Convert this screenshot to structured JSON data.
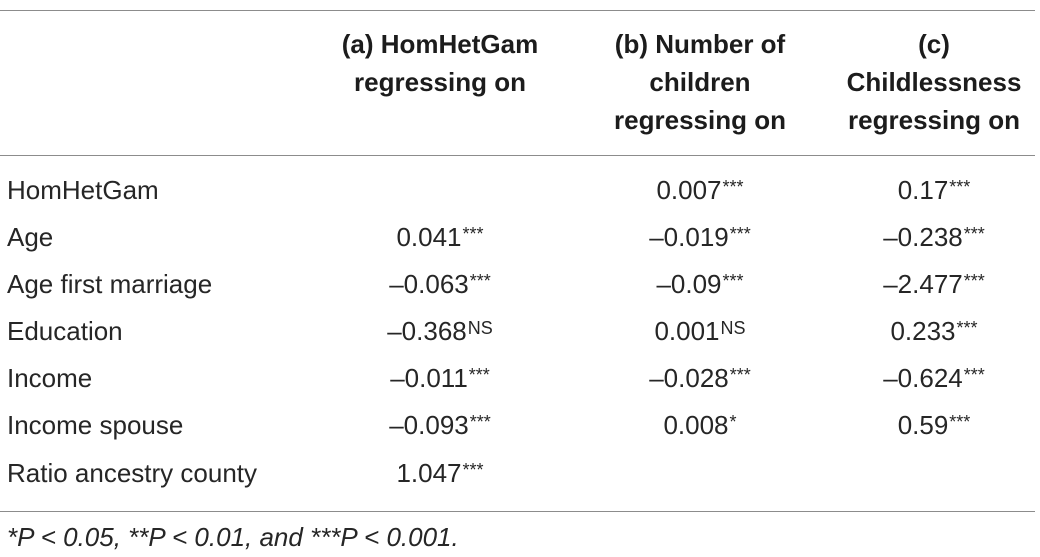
{
  "table": {
    "headers": [
      {
        "key": "a",
        "lines": [
          "(a) HomHetGam",
          "regressing on"
        ]
      },
      {
        "key": "b",
        "lines": [
          "(b) Number of",
          "children",
          "regressing on"
        ]
      },
      {
        "key": "c",
        "lines": [
          "(c)",
          "Childlessness",
          "regressing on"
        ]
      }
    ],
    "rows": [
      {
        "label": "HomHetGam",
        "a": {
          "value": "",
          "sig": ""
        },
        "b": {
          "value": "0.007",
          "sig": "***"
        },
        "c": {
          "value": "0.17",
          "sig": "***"
        }
      },
      {
        "label": "Age",
        "a": {
          "value": "0.041",
          "sig": "***"
        },
        "b": {
          "value": "–0.019",
          "sig": "***"
        },
        "c": {
          "value": "–0.238",
          "sig": "***"
        }
      },
      {
        "label": "Age first marriage",
        "a": {
          "value": "–0.063",
          "sig": "***"
        },
        "b": {
          "value": "–0.09",
          "sig": "***"
        },
        "c": {
          "value": "–2.477",
          "sig": "***"
        }
      },
      {
        "label": "Education",
        "a": {
          "value": "–0.368",
          "sig": "NS"
        },
        "b": {
          "value": "0.001",
          "sig": "NS"
        },
        "c": {
          "value": "0.233",
          "sig": "***"
        }
      },
      {
        "label": "Income",
        "a": {
          "value": "–0.011",
          "sig": "***"
        },
        "b": {
          "value": "–0.028",
          "sig": "***"
        },
        "c": {
          "value": "–0.624",
          "sig": "***"
        }
      },
      {
        "label": "Income spouse",
        "a": {
          "value": "–0.093",
          "sig": "***"
        },
        "b": {
          "value": "0.008",
          "sig": "*"
        },
        "c": {
          "value": "0.59",
          "sig": "***"
        }
      },
      {
        "label": "Ratio ancestry county",
        "a": {
          "value": "1.047",
          "sig": "***"
        },
        "b": {
          "value": "",
          "sig": ""
        },
        "c": {
          "value": "",
          "sig": ""
        }
      }
    ],
    "footnote": "*P < 0.05, **P < 0.01, and ***P < 0.001."
  }
}
